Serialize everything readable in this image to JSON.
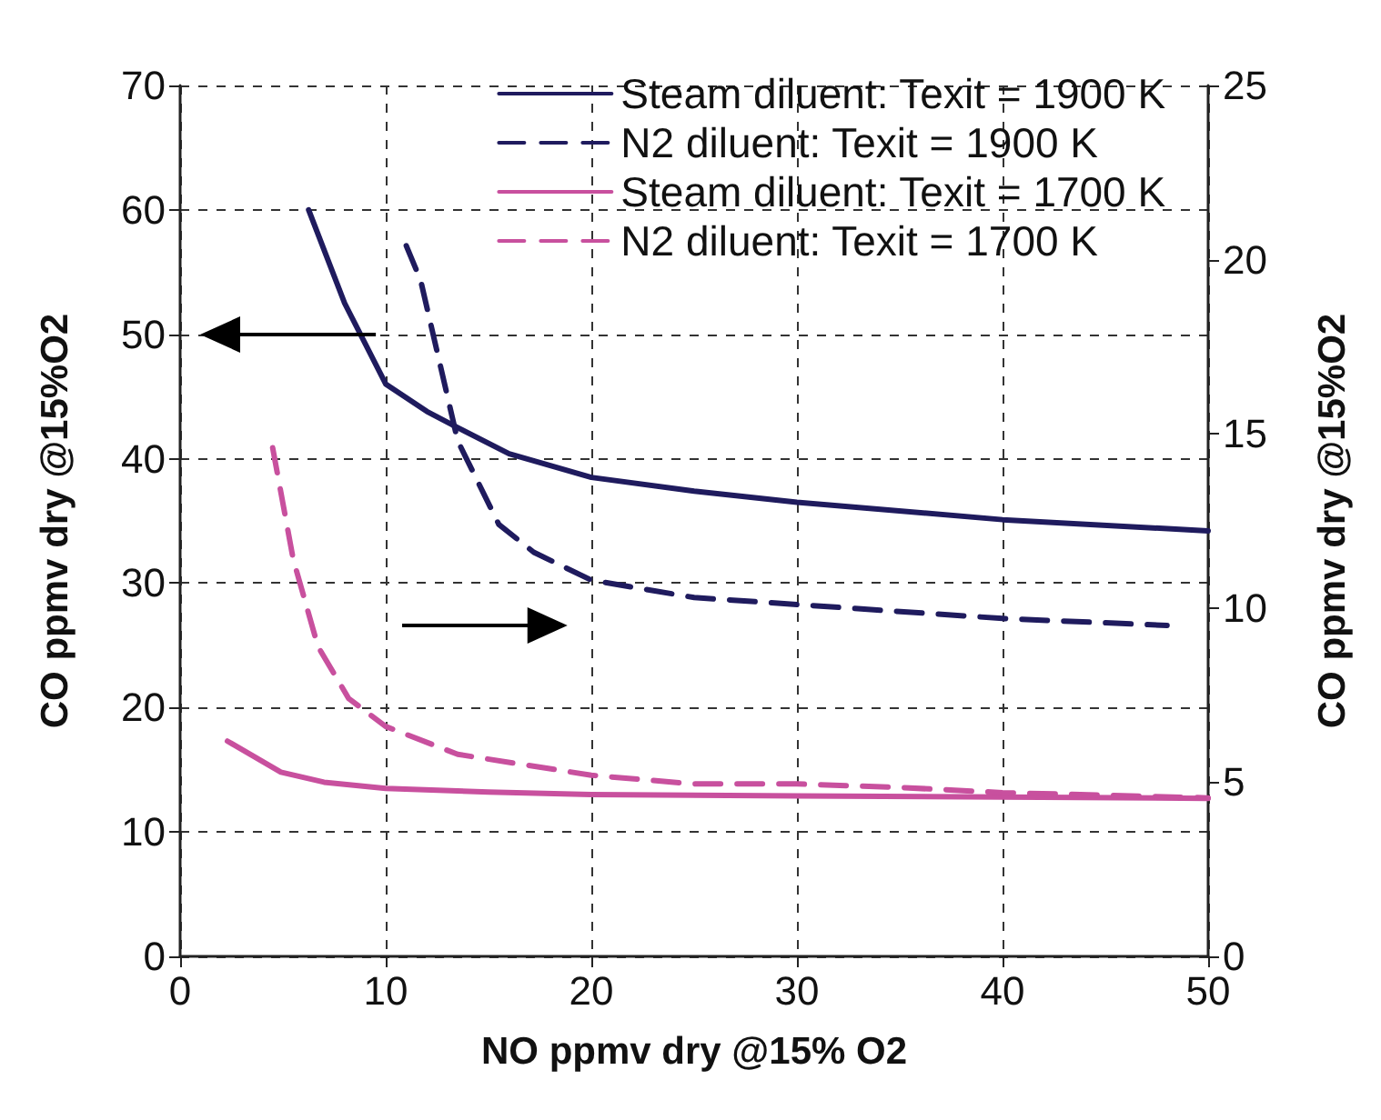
{
  "chart_data": {
    "type": "line",
    "xlabel": "NO ppmv dry @15% O2",
    "ylabel": "CO ppmv dry @15%O2",
    "y2label": "CO ppmv dry @15%O2",
    "xlim": [
      0,
      50
    ],
    "xticks": [
      0,
      10,
      20,
      30,
      40,
      50
    ],
    "ylim": [
      0,
      70
    ],
    "yticks": [
      0,
      10,
      20,
      30,
      40,
      50,
      60,
      70
    ],
    "y2lim": [
      0,
      25
    ],
    "y2ticks": [
      0,
      5,
      10,
      15,
      20,
      25
    ],
    "grid": true,
    "legend": "top right",
    "series": [
      {
        "name": "Steam diluent: Texit = 1900 K",
        "color": "#1f1b5e",
        "line_style": "solid",
        "x": [
          6.25,
          8,
          10,
          12,
          13.5,
          16,
          20,
          25,
          30,
          40,
          50
        ],
        "values": [
          60,
          52.5,
          46,
          43.8,
          42.5,
          40.4,
          38.5,
          37.4,
          36.5,
          35.1,
          34.2
        ]
      },
      {
        "name": "N2 diluent: Texit = 1900 K",
        "color": "#1f1b5e",
        "line_style": "dashed",
        "axis": "y2",
        "x": [
          11,
          11.7,
          13.5,
          15.5,
          17.2,
          20,
          25,
          30,
          40,
          48
        ],
        "values": [
          20.4,
          19.4,
          14.8,
          12.4,
          11.6,
          10.8,
          10.3,
          10.1,
          9.7,
          9.5
        ]
      },
      {
        "name": "Steam diluent: Texit = 1700 K",
        "color": "#c8509e",
        "line_style": "solid",
        "x": [
          2.3,
          4.9,
          7,
          10,
          15,
          20,
          30,
          40,
          50
        ],
        "values": [
          17.3,
          14.8,
          14,
          13.5,
          13.2,
          13,
          12.9,
          12.8,
          12.7
        ]
      },
      {
        "name": "N2 diluent: Texit = 1700 K",
        "color": "#c8509e",
        "line_style": "dashed",
        "axis": "y2",
        "x": [
          4.5,
          5.5,
          6.7,
          8.2,
          10,
          13.5,
          20,
          25,
          30,
          35,
          40,
          50
        ],
        "values": [
          14.6,
          11.4,
          8.9,
          7.4,
          6.6,
          5.8,
          5.2,
          4.95,
          4.95,
          4.85,
          4.7,
          4.55
        ]
      }
    ]
  }
}
